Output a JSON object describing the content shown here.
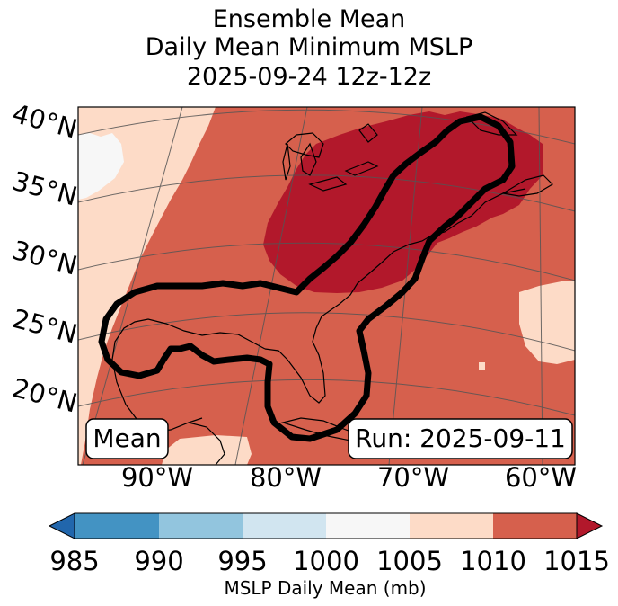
{
  "title": {
    "line1": "Ensemble Mean",
    "line2": "Daily Mean Minimum MSLP",
    "line3": "2025-09-24 12z-12z"
  },
  "map": {
    "lat_labels": [
      "40°N",
      "35°N",
      "30°N",
      "25°N",
      "20°N"
    ],
    "lon_labels": [
      "90°W",
      "80°W",
      "70°W",
      "60°W"
    ],
    "mean_box": "Mean",
    "run_box": "Run: 2025-09-11",
    "contour_description_color": "#000000"
  },
  "colorbar": {
    "ticks": [
      "985",
      "990",
      "995",
      "1000",
      "1005",
      "1010",
      "1015"
    ],
    "label": "MSLP Daily Mean (mb)",
    "colors": {
      "below": "#2166ac",
      "985-990": "#4393c3",
      "990-995": "#92c5de",
      "995-1000": "#d1e5f0",
      "1000-1005": "#f7f7f7",
      "1005-1010": "#fddbc7",
      "1010-1015": "#d6604d",
      "above": "#b2182b"
    }
  }
}
